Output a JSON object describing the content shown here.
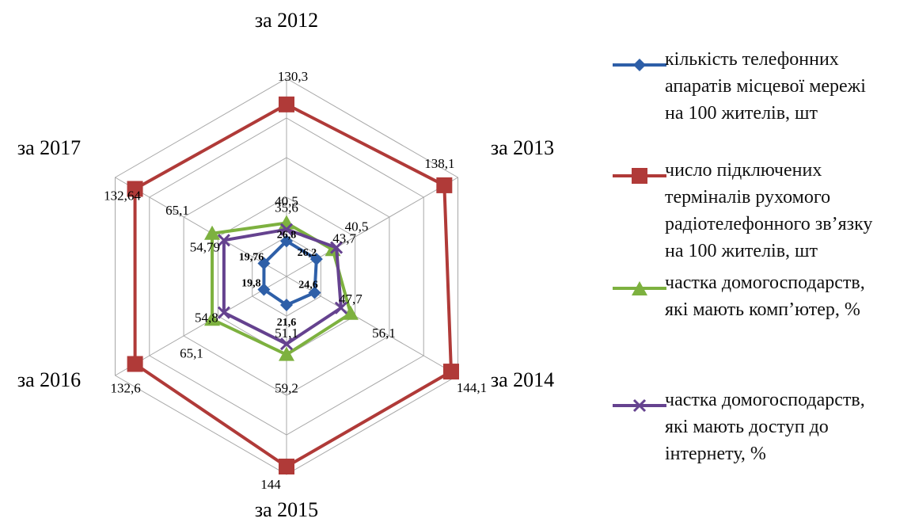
{
  "chart_data": {
    "type": "radar",
    "categories": [
      "за 2012",
      "за 2013",
      "за 2014",
      "за 2015",
      "за 2016",
      "за 2017"
    ],
    "rlim": [
      0,
      150
    ],
    "grid": true,
    "legend_position": "right",
    "series": [
      {
        "name": "кількість телефонних\nапаратів місцевої мережі\nна 100 жителів, шт",
        "color": "#2e5fa8",
        "marker": "diamond",
        "values": [
          26.8,
          26.2,
          24.6,
          21.6,
          19.8,
          19.76
        ],
        "labels": [
          "26,8",
          "26,2",
          "24,6",
          "21,6",
          "19,8",
          "19,76"
        ]
      },
      {
        "name": "число підключених\nтерміналів рухомого\nрадіотелефонного зв’язку\nна 100 жителів, шт",
        "color": "#b03a38",
        "marker": "square",
        "values": [
          130.3,
          138.1,
          144.1,
          144,
          132.6,
          132.64
        ],
        "labels": [
          "130,3",
          "138,1",
          "144,1",
          "144",
          "132,6",
          "132,64"
        ]
      },
      {
        "name": "частка домогосподарств,\nякі мають комп’ютер, %",
        "color": "#7db13f",
        "marker": "triangle",
        "values": [
          40.5,
          40.5,
          56.1,
          59.2,
          65.1,
          65.1
        ],
        "labels": [
          "40,5",
          "40,5",
          "56,1",
          "59,2",
          "65,1",
          "65,1"
        ]
      },
      {
        "name": "частка домогосподарств,\nякі мають доступ до\nінтернету, %",
        "color": "#65428f",
        "marker": "x",
        "values": [
          35.6,
          43.7,
          47.7,
          51.1,
          54.8,
          54.79
        ],
        "labels": [
          "35,6",
          "43,7",
          "47,7",
          "51,1",
          "54,8",
          "54,79"
        ]
      }
    ]
  }
}
